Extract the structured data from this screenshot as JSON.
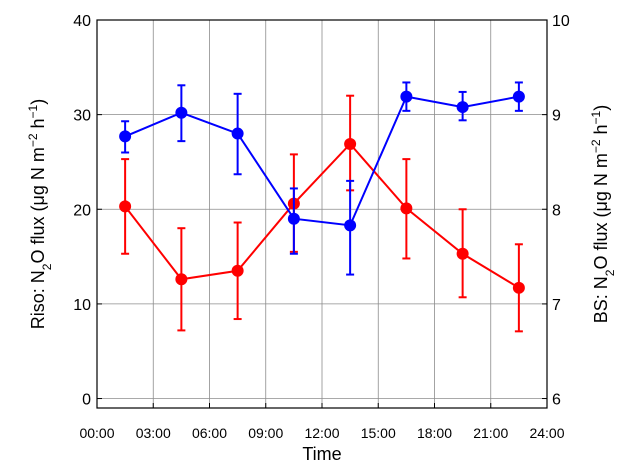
{
  "chart_data": {
    "type": "line",
    "xlabel": "Time",
    "x": [
      1.5,
      4.5,
      7.5,
      10.5,
      13.5,
      16.5,
      19.5,
      22.5
    ],
    "x_ticks": [
      {
        "value": 0,
        "label": "00:00"
      },
      {
        "value": 3,
        "label": "03:00"
      },
      {
        "value": 6,
        "label": "06:00"
      },
      {
        "value": 9,
        "label": "09:00"
      },
      {
        "value": 12,
        "label": "12:00"
      },
      {
        "value": 15,
        "label": "15:00"
      },
      {
        "value": 18,
        "label": "18:00"
      },
      {
        "value": 21,
        "label": "21:00"
      },
      {
        "value": 24,
        "label": "24:00"
      }
    ],
    "xlim": [
      0,
      24
    ],
    "left_axis": {
      "label_parts": [
        "Riso: N",
        "2",
        "O flux (μg N m",
        "−2",
        " h",
        "−1",
        ")"
      ],
      "ylim": [
        -1,
        40
      ],
      "ticks": [
        0,
        10,
        20,
        30,
        40
      ]
    },
    "right_axis": {
      "label_parts": [
        "BS: N",
        "2",
        "O flux  (μg N m",
        "−2",
        " h",
        "−1",
        ")"
      ],
      "ylim": [
        5.9,
        10
      ],
      "ticks": [
        6,
        7,
        8,
        9,
        10
      ]
    },
    "series": [
      {
        "axis": "left",
        "color": "#ff0000",
        "values": [
          20.3,
          12.6,
          13.5,
          20.6,
          26.9,
          20.1,
          15.3,
          11.7
        ],
        "err_low": [
          15.3,
          7.2,
          8.4,
          15.5,
          22.0,
          14.8,
          10.7,
          7.1
        ],
        "err_high": [
          25.3,
          18.0,
          18.6,
          25.8,
          32.0,
          25.3,
          20.0,
          16.3
        ]
      },
      {
        "axis": "right",
        "color": "#0000ff",
        "values": [
          8.77,
          9.02,
          8.8,
          7.9,
          7.83,
          9.19,
          9.08,
          9.19
        ],
        "err_low": [
          8.6,
          8.72,
          8.37,
          7.53,
          7.31,
          9.04,
          8.94,
          9.04
        ],
        "err_high": [
          8.93,
          9.31,
          9.22,
          8.22,
          8.3,
          9.34,
          9.24,
          9.34
        ]
      }
    ],
    "grid": true
  }
}
